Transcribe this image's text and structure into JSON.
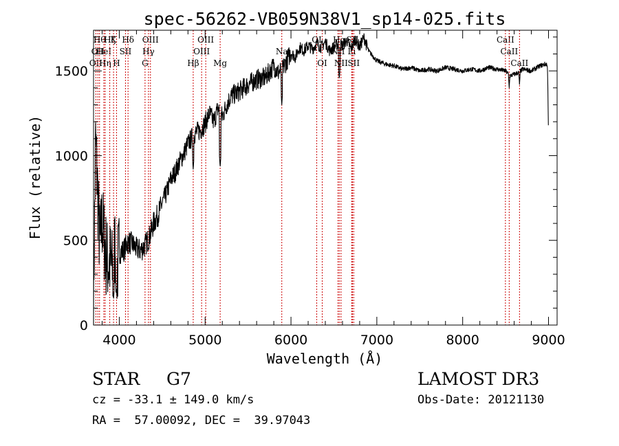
{
  "chart_data": {
    "type": "line",
    "title": "spec-56262-VB059N38V1_sp14-025.fits",
    "xlabel": "Wavelength (Å)",
    "ylabel": "Flux (relative)",
    "xlim": [
      3700,
      9100
    ],
    "ylim": [
      0,
      1740
    ],
    "x_ticks": [
      4000,
      5000,
      6000,
      7000,
      8000,
      9000
    ],
    "y_ticks": [
      0,
      500,
      1000,
      1500
    ],
    "x_minor_step": 200,
    "y_minor_step": 100,
    "grid": false,
    "line_color": "#000000",
    "marker_color": "#cc0000",
    "series": [
      {
        "name": "flux",
        "x": [
          3700,
          3725,
          3750,
          3775,
          3800,
          3825,
          3850,
          3875,
          3900,
          3925,
          3950,
          3975,
          4000,
          4050,
          4100,
          4150,
          4200,
          4250,
          4300,
          4350,
          4400,
          4450,
          4500,
          4550,
          4600,
          4650,
          4700,
          4750,
          4800,
          4850,
          4900,
          4950,
          5000,
          5050,
          5100,
          5150,
          5200,
          5250,
          5300,
          5400,
          5500,
          5600,
          5700,
          5800,
          5850,
          5900,
          5950,
          6000,
          6050,
          6100,
          6150,
          6200,
          6250,
          6300,
          6350,
          6400,
          6450,
          6500,
          6550,
          6600,
          6650,
          6700,
          6750,
          6800,
          6850,
          6900,
          6950,
          7000,
          7100,
          7200,
          7300,
          7400,
          7500,
          7600,
          7700,
          7800,
          7900,
          8000,
          8100,
          8200,
          8300,
          8400,
          8500,
          8550,
          8600,
          8650,
          8700,
          8800,
          8900,
          8960,
          8980,
          8990,
          9000
        ],
        "y": [
          150,
          1100,
          750,
          450,
          620,
          500,
          400,
          350,
          380,
          300,
          480,
          330,
          430,
          440,
          490,
          480,
          450,
          440,
          470,
          520,
          600,
          650,
          720,
          780,
          860,
          900,
          960,
          1010,
          1070,
          1110,
          1140,
          1150,
          1190,
          1250,
          1200,
          1280,
          1230,
          1300,
          1350,
          1380,
          1420,
          1450,
          1460,
          1530,
          1490,
          1510,
          1560,
          1610,
          1580,
          1640,
          1620,
          1650,
          1630,
          1660,
          1640,
          1670,
          1620,
          1640,
          1660,
          1650,
          1680,
          1630,
          1690,
          1640,
          1700,
          1620,
          1590,
          1560,
          1540,
          1530,
          1510,
          1520,
          1500,
          1510,
          1500,
          1520,
          1510,
          1500,
          1510,
          1500,
          1520,
          1510,
          1500,
          1470,
          1480,
          1490,
          1510,
          1500,
          1530,
          1540,
          1540,
          1500,
          1100
        ],
        "absorption_dips": [
          {
            "x": 3933,
            "y": 150
          },
          {
            "x": 3968,
            "y": 180
          },
          {
            "x": 4861,
            "y": 920
          },
          {
            "x": 5175,
            "y": 930
          },
          {
            "x": 5893,
            "y": 1300
          },
          {
            "x": 6563,
            "y": 1450
          },
          {
            "x": 8542,
            "y": 1400
          },
          {
            "x": 8662,
            "y": 1420
          }
        ]
      }
    ],
    "line_markers": [
      {
        "x": 3727,
        "labels": [
          "OII"
        ],
        "rows": [
          2
        ]
      },
      {
        "x": 3750,
        "labels": [
          "OII"
        ],
        "rows": [
          1
        ]
      },
      {
        "x": 3770,
        "labels": [
          "Hθ"
        ],
        "rows": [
          0
        ]
      },
      {
        "x": 3820,
        "labels": [
          "HeI"
        ],
        "rows": [
          1
        ]
      },
      {
        "x": 3835,
        "labels": [
          "Hη"
        ],
        "rows": [
          2
        ]
      },
      {
        "x": 3889,
        "labels": [
          "Hζ"
        ],
        "rows": [
          0
        ]
      },
      {
        "x": 3933,
        "labels": [
          "K"
        ],
        "rows": [
          0
        ]
      },
      {
        "x": 3968,
        "labels": [
          "H"
        ],
        "rows": [
          2
        ]
      },
      {
        "x": 4072,
        "labels": [
          "SII"
        ],
        "rows": [
          1
        ]
      },
      {
        "x": 4102,
        "labels": [
          "Hδ"
        ],
        "rows": [
          0
        ]
      },
      {
        "x": 4300,
        "labels": [
          "G"
        ],
        "rows": [
          2
        ]
      },
      {
        "x": 4340,
        "labels": [
          "Hγ"
        ],
        "rows": [
          1
        ]
      },
      {
        "x": 4363,
        "labels": [
          "OIII"
        ],
        "rows": [
          0
        ]
      },
      {
        "x": 4861,
        "labels": [
          "Hβ"
        ],
        "rows": [
          2
        ]
      },
      {
        "x": 4959,
        "labels": [
          "OIII"
        ],
        "rows": [
          1
        ]
      },
      {
        "x": 5007,
        "labels": [
          "OIII"
        ],
        "rows": [
          0
        ]
      },
      {
        "x": 5175,
        "labels": [
          "Mg"
        ],
        "rows": [
          2
        ]
      },
      {
        "x": 5893,
        "labels": [
          "Na"
        ],
        "rows": [
          1
        ]
      },
      {
        "x": 6300,
        "labels": [
          "OI"
        ],
        "rows": [
          0
        ]
      },
      {
        "x": 6364,
        "labels": [
          "OI"
        ],
        "rows": [
          2
        ]
      },
      {
        "x": 6548,
        "labels": [
          "NII"
        ],
        "rows": [
          1
        ]
      },
      {
        "x": 6563,
        "labels": [
          "Hα"
        ],
        "rows": [
          0
        ]
      },
      {
        "x": 6583,
        "labels": [
          "NII"
        ],
        "rows": [
          2
        ]
      },
      {
        "x": 6708,
        "labels": [
          "Li"
        ],
        "rows": [
          1
        ]
      },
      {
        "x": 6716,
        "labels": [
          "SII"
        ],
        "rows": [
          0
        ]
      },
      {
        "x": 6731,
        "labels": [
          "SII"
        ],
        "rows": [
          2
        ]
      },
      {
        "x": 8498,
        "labels": [
          "CaII"
        ],
        "rows": [
          0
        ]
      },
      {
        "x": 8542,
        "labels": [
          "CaII"
        ],
        "rows": [
          1
        ]
      },
      {
        "x": 8662,
        "labels": [
          "CaII"
        ],
        "rows": [
          2
        ]
      }
    ]
  },
  "footer": {
    "object_class": "STAR",
    "subclass": "G7",
    "survey": "LAMOST DR3",
    "redshift_line": "cz = -33.1 ± 149.0 km/s",
    "obs_date": "Obs-Date: 20121130",
    "coords": "RA =  57.00092, DEC =  39.97043"
  }
}
